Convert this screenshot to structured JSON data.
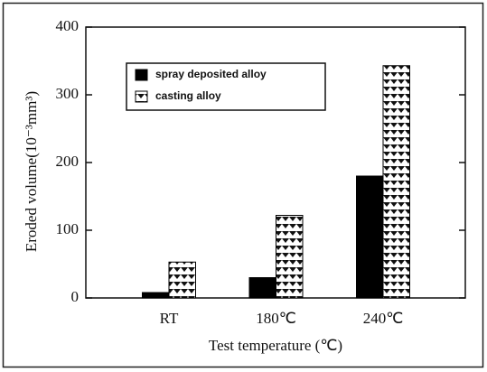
{
  "chart_data": {
    "type": "bar",
    "y_label": "Eroded volume(10⁻³mm³)",
    "x_label": "Test temperature (℃)",
    "categories": [
      "RT",
      "180℃",
      "240℃"
    ],
    "series": [
      {
        "name": "spray deposited alloy",
        "color": "#000000",
        "values": [
          8,
          30,
          180
        ]
      },
      {
        "name": "casting alloy",
        "color": "#000000",
        "pattern": "triangles",
        "values": [
          53,
          122,
          343
        ]
      }
    ],
    "ylim": [
      0,
      400
    ],
    "yticks": [
      0,
      100,
      200,
      300,
      400
    ],
    "legend": "upper left"
  }
}
